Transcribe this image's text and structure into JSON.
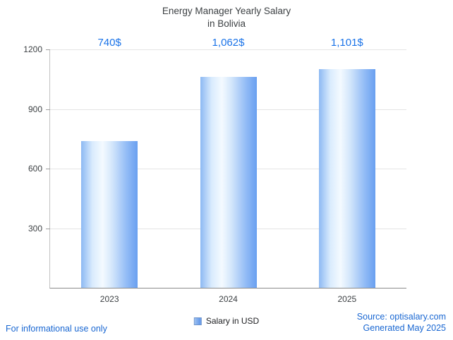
{
  "title": {
    "line1": "Energy Manager Yearly Salary",
    "line2": "in Bolivia"
  },
  "chart_data": {
    "type": "bar",
    "title": "Energy Manager Yearly Salary in Bolivia",
    "categories": [
      "2023",
      "2024",
      "2025"
    ],
    "values": [
      740,
      1062,
      1101
    ],
    "value_labels": [
      "740$",
      "1,062$",
      "1,101$"
    ],
    "ylim": [
      0,
      1200
    ],
    "yticks": [
      300,
      600,
      900,
      1200
    ],
    "xlabel": "",
    "ylabel": "",
    "grid": true,
    "legend": "Salary in USD",
    "legend_position": "bottom"
  },
  "footer": {
    "disclaimer": "For informational use only",
    "source": "Source: optisalary.com",
    "generated": "Generated May 2025"
  },
  "colors": {
    "accent": "#1a73e8",
    "link": "#1967d2",
    "bar_light": "#f4faff",
    "bar_dark": "#699ff0",
    "grid": "#e4e4e4",
    "axis": "#8a8a8a",
    "text": "#3c4043"
  }
}
